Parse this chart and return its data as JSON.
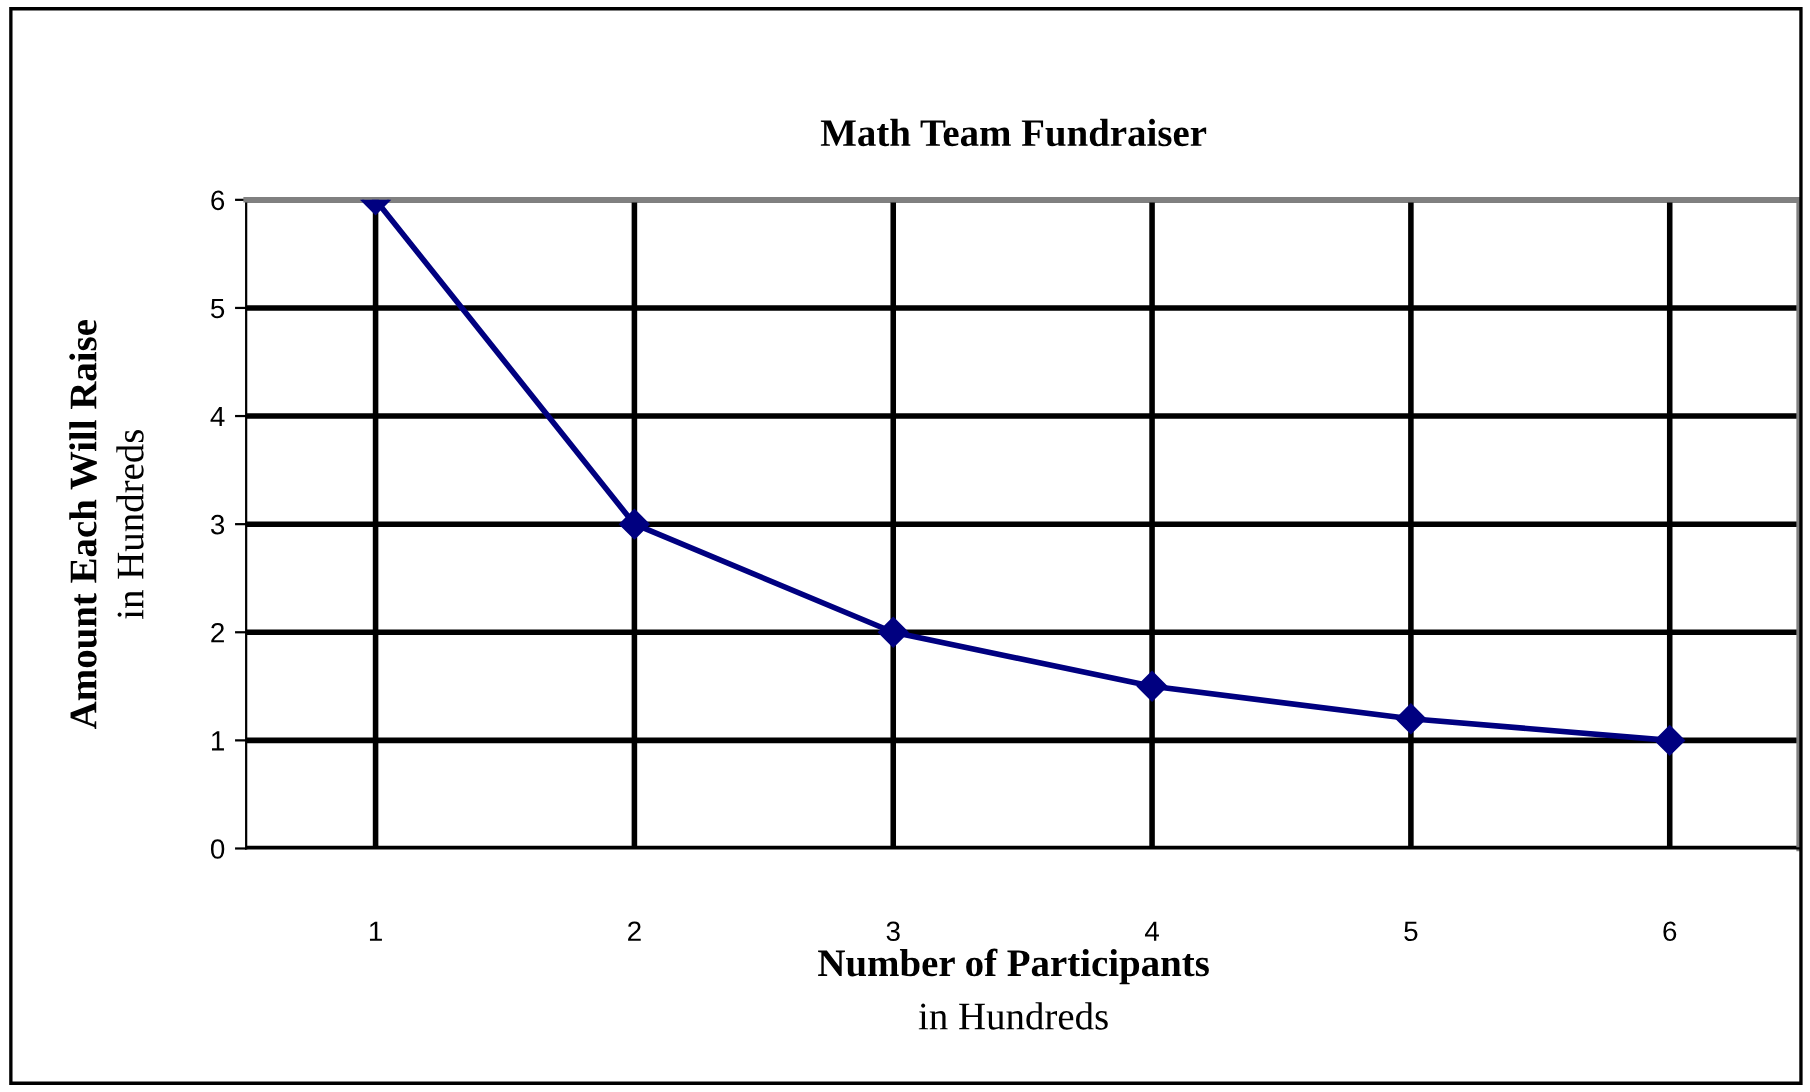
{
  "chart_data": {
    "type": "line",
    "title": "Math Team Fundraiser",
    "xlabel": "Number of Participants",
    "ylabel": "Amount Each Will Raise",
    "annotations": [
      "in Hundreds",
      "in Hundreds"
    ],
    "categories": [
      "1",
      "2",
      "3",
      "4",
      "5",
      "6"
    ],
    "series": [
      {
        "color": "#000080",
        "values": [
          6,
          3,
          2,
          1.5,
          1.2,
          1
        ]
      }
    ],
    "ylim": [
      0,
      6
    ],
    "yticks": [
      0,
      1,
      2,
      3,
      4,
      5,
      6
    ],
    "grid": true,
    "marker": "diamond",
    "line_style": "solid",
    "legend": false
  }
}
